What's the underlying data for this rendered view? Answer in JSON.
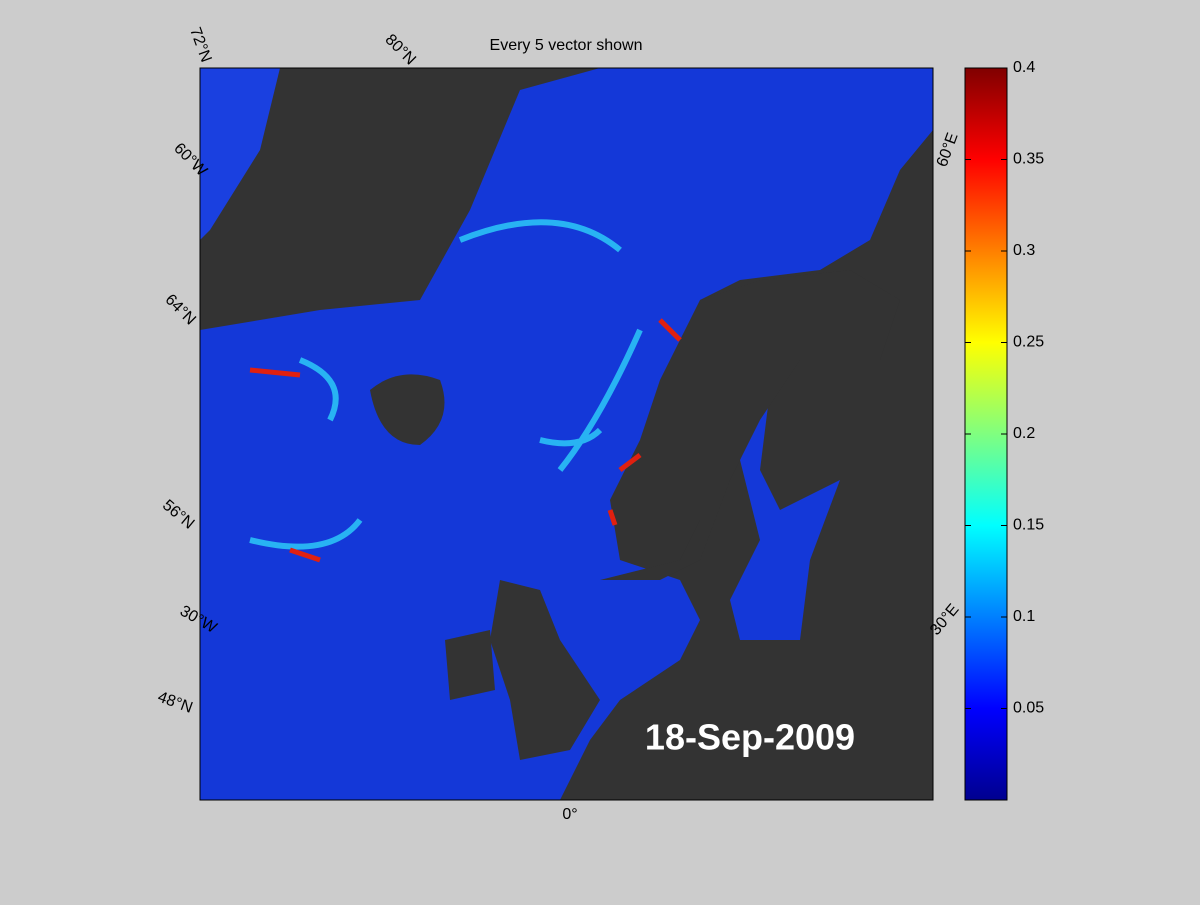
{
  "title": "Every 5 vector shown",
  "date": "18-Sep-2009",
  "graticule_labels": [
    "72°N",
    "80°N",
    "60°W",
    "64°N",
    "56°N",
    "30°W",
    "48°N",
    "0°",
    "30°E",
    "60°E"
  ],
  "colorbar": {
    "clim": [
      0,
      0.4
    ],
    "ticks": [
      0.05,
      0.1,
      0.15,
      0.2,
      0.25,
      0.3,
      0.35,
      0.4
    ]
  }
}
